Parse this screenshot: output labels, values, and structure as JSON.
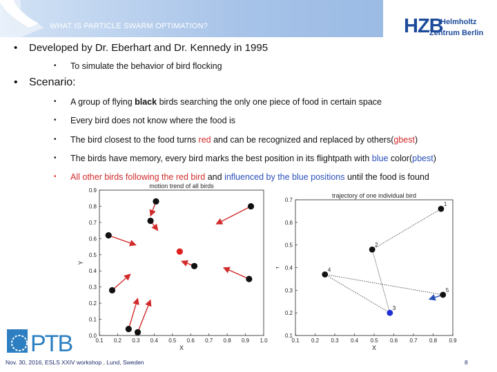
{
  "header": {
    "title": "WHAT IS PARTICLE SWARM OPTIMATION?",
    "logo_main": "HZB",
    "logo_line1": "Helmholtz",
    "logo_line2": "Zentrum Berlin"
  },
  "content": {
    "bullet1": "Developed by Dr. Eberhart and Dr. Kennedy in 1995",
    "sub1": "To simulate the behavior of bird flocking",
    "bullet2": "Scenario:",
    "s1a": "A group of flying ",
    "s1b": "black",
    "s1c": " birds searching the only one piece of food in certain space",
    "s2": "Every bird does not know where the food is",
    "s3a": "The bird closest to the food turns ",
    "s3b": "red",
    "s3c": " and can be recognized and replaced by others(",
    "s3d": "gbest",
    "s3e": ")",
    "s4a": "The birds have memory, every bird marks the best position in its flightpath with ",
    "s4b": "blue",
    "s4c": " color(",
    "s4d": "pbest",
    "s4e": ")",
    "s5a": "All other birds following the red bird",
    "s5b": " and ",
    "s5c": "influenced by the blue positions",
    "s5d": " until the food is found"
  },
  "chart_data": [
    {
      "type": "scatter",
      "title": "motion trend of all birds",
      "xlabel": "X",
      "ylabel": "Y",
      "xlim": [
        0.1,
        1.0
      ],
      "ylim": [
        0.0,
        0.9
      ],
      "xticks": [
        "0.1",
        "0.2",
        "0.3",
        "0.4",
        "0.5",
        "0.6",
        "0.7",
        "0.8",
        "0.9",
        "1.0"
      ],
      "yticks": [
        "0.0",
        "0.1",
        "0.2",
        "0.3",
        "0.4",
        "0.5",
        "0.6",
        "0.7",
        "0.8",
        "0.9"
      ],
      "birds": [
        {
          "x": 0.41,
          "y": 0.83,
          "dx": -0.03,
          "dy": -0.09,
          "color": "black"
        },
        {
          "x": 0.38,
          "y": 0.71,
          "dx": 0.04,
          "dy": -0.06,
          "color": "black"
        },
        {
          "x": 0.93,
          "y": 0.8,
          "dx": -0.19,
          "dy": -0.11,
          "color": "black"
        },
        {
          "x": 0.15,
          "y": 0.62,
          "dx": 0.15,
          "dy": -0.06,
          "color": "black"
        },
        {
          "x": 0.62,
          "y": 0.43,
          "dx": -0.07,
          "dy": 0.03,
          "color": "black"
        },
        {
          "x": 0.92,
          "y": 0.35,
          "dx": -0.14,
          "dy": 0.07,
          "color": "black"
        },
        {
          "x": 0.17,
          "y": 0.28,
          "dx": 0.1,
          "dy": 0.1,
          "color": "black"
        },
        {
          "x": 0.26,
          "y": 0.04,
          "dx": 0.05,
          "dy": 0.19,
          "color": "black"
        },
        {
          "x": 0.31,
          "y": 0.02,
          "dx": 0.07,
          "dy": 0.2,
          "color": "black"
        },
        {
          "x": 0.54,
          "y": 0.52,
          "dx": 0,
          "dy": 0,
          "color": "red"
        }
      ]
    },
    {
      "type": "line",
      "title": "trajectory of one individual bird",
      "xlabel": "X",
      "ylabel": "Y",
      "xlim": [
        0.1,
        0.9
      ],
      "ylim": [
        0.1,
        0.7
      ],
      "xticks": [
        "0.1",
        "0.2",
        "0.3",
        "0.4",
        "0.5",
        "0.6",
        "0.7",
        "0.8",
        "0.9"
      ],
      "yticks": [
        "0.1",
        "0.2",
        "0.3",
        "0.4",
        "0.5",
        "0.6",
        "0.7"
      ],
      "points": [
        {
          "label": "1",
          "x": 0.84,
          "y": 0.66,
          "color": "black"
        },
        {
          "label": "2",
          "x": 0.49,
          "y": 0.48,
          "color": "black"
        },
        {
          "label": "3",
          "x": 0.58,
          "y": 0.2,
          "color": "blue"
        },
        {
          "label": "4",
          "x": 0.25,
          "y": 0.37,
          "color": "black"
        },
        {
          "label": "5",
          "x": 0.85,
          "y": 0.28,
          "color": "black"
        }
      ],
      "end_arrow": {
        "dx": -0.07,
        "dy": -0.02
      }
    }
  ],
  "footer": {
    "text": "Nov. 30, 2016, ESLS XXIV workshop , Lund, Sweden",
    "page": "8",
    "logo": "PTB"
  },
  "colors": {
    "header_blue": "#a9c6ea",
    "hzb_blue": "#1d4a9a",
    "ptb_blue": "#2d7fc1",
    "red": "#d22b2b",
    "blue": "#2a4fb8"
  }
}
